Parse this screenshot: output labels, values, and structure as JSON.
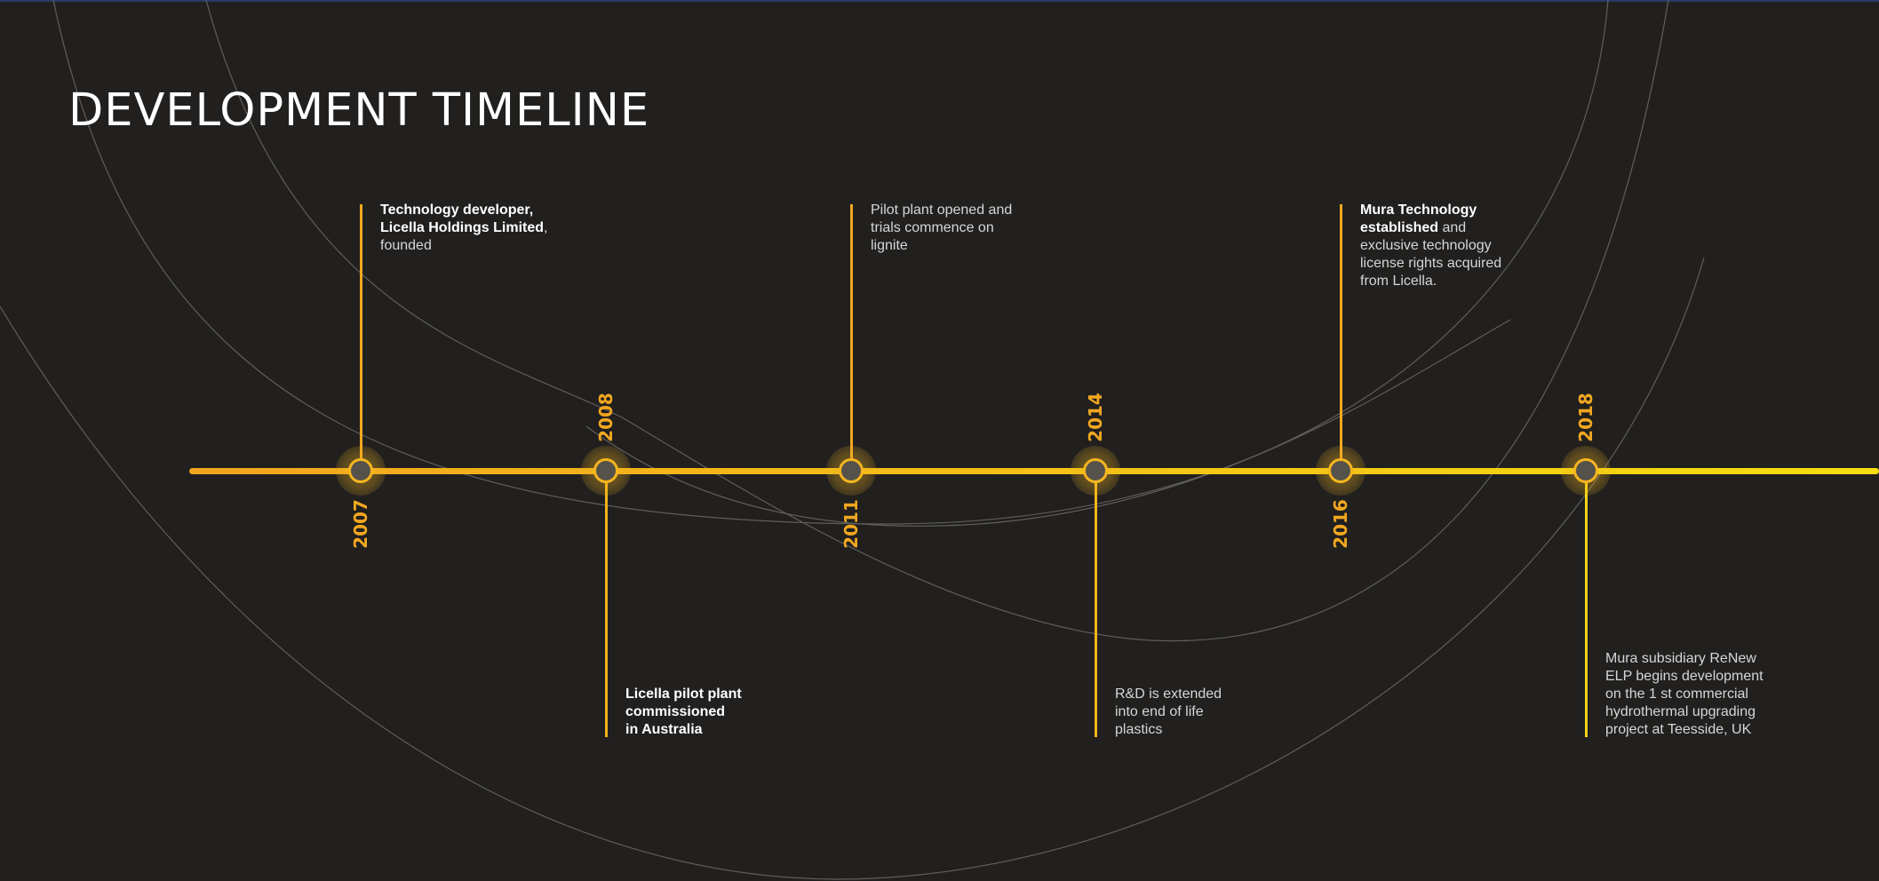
{
  "title": "DEVELOPMENT TIMELINE",
  "colors": {
    "background": "#21201f",
    "accent": "#f2a720",
    "axis_end": "#f5dd10",
    "text": "#d6d6d6",
    "title": "#ffffff"
  },
  "events": [
    {
      "year": "2007",
      "position": "top",
      "bold": "Technology developer,\nLicella Holdings Limited",
      "text": ",\nfounded"
    },
    {
      "year": "2008",
      "position": "bottom",
      "bold": "Licella pilot plant\ncommissioned\nin Australia",
      "text": ""
    },
    {
      "year": "2011",
      "position": "top",
      "bold": "",
      "text": "Pilot plant opened and\ntrials commence on\nlignite"
    },
    {
      "year": "2014",
      "position": "bottom",
      "bold": "",
      "text": "R&D is extended\ninto end of life\nplastics"
    },
    {
      "year": "2016",
      "position": "top",
      "bold": "Mura Technology\nestablished",
      "text": " and\nexclusive technology\nlicense rights acquired\nfrom Licella."
    },
    {
      "year": "2018",
      "position": "bottom",
      "bold": "",
      "text": "Mura subsidiary ReNew\nELP begins development\non the 1 st commercial\nhydrothermal upgrading\nproject at Teesside, UK"
    }
  ]
}
